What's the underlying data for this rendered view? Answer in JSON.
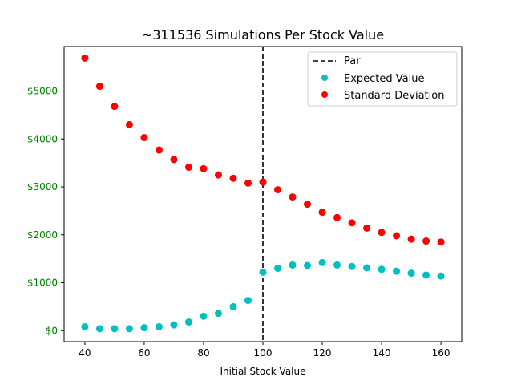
{
  "chart_data": {
    "type": "scatter",
    "title": "~311536 Simulations Per Stock Value",
    "xlabel": "Initial Stock Value",
    "ylabel": "",
    "xlim": [
      33,
      167
    ],
    "ylim": [
      -230,
      5930
    ],
    "x_ticks": [
      40,
      60,
      80,
      100,
      120,
      140,
      160
    ],
    "y_ticks": [
      0,
      1000,
      2000,
      3000,
      4000,
      5000
    ],
    "y_tick_labels": [
      "$0",
      "$1000",
      "$2000",
      "$3000",
      "$4000",
      "$5000"
    ],
    "y_tick_color": "#008000",
    "grid": false,
    "legend_position": "top-right",
    "reference_line": {
      "name": "Par",
      "x": 100,
      "color": "#000000",
      "style": "dashed"
    },
    "x": [
      40,
      45,
      50,
      55,
      60,
      65,
      70,
      75,
      80,
      85,
      90,
      95,
      100,
      105,
      110,
      115,
      120,
      125,
      130,
      135,
      140,
      145,
      150,
      155,
      160
    ],
    "series": [
      {
        "name": "Expected Value",
        "color": "#00bfbf",
        "values": [
          80,
          40,
          40,
          40,
          60,
          80,
          120,
          180,
          300,
          360,
          500,
          630,
          1220,
          1300,
          1370,
          1360,
          1420,
          1370,
          1340,
          1310,
          1280,
          1240,
          1200,
          1160,
          1140
        ]
      },
      {
        "name": "Standard Deviation",
        "color": "#ff0000",
        "values": [
          5690,
          5100,
          4680,
          4300,
          4030,
          3770,
          3570,
          3410,
          3380,
          3250,
          3180,
          3080,
          3100,
          2940,
          2790,
          2640,
          2470,
          2360,
          2250,
          2140,
          2050,
          1980,
          1910,
          1870,
          1850
        ]
      }
    ]
  }
}
